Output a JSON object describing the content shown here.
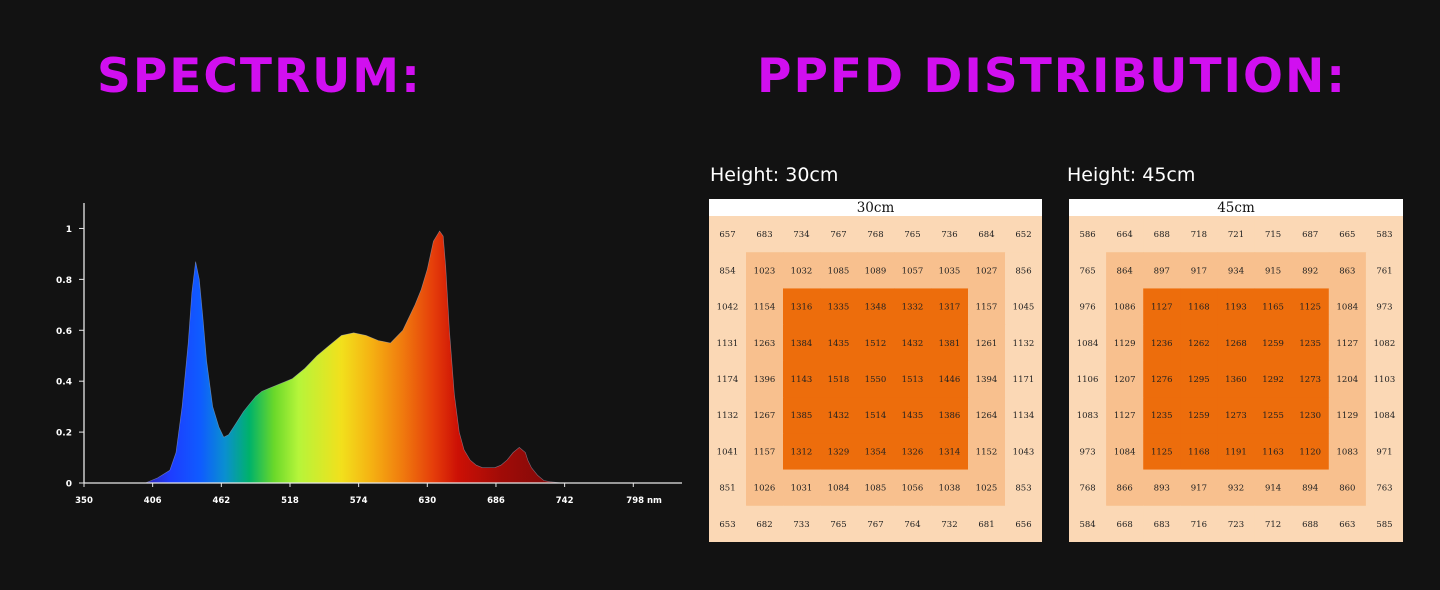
{
  "headings": {
    "spectrum": "SPECTRUM:",
    "ppfd": "PPFD DISTRIBUTION:"
  },
  "colors": {
    "background": "#121212",
    "heading": "#d10ff0",
    "axis": "#e8e8e8",
    "cell_outer": "#fbd8b5",
    "cell_middle": "#f8c08e",
    "cell_inner": "#ed6d0c",
    "grid_title_bg": "#ffffff",
    "grid_text": "#222222"
  },
  "chart_data": [
    {
      "type": "area",
      "title": "",
      "xlabel": "",
      "ylabel": "",
      "x_unit": "nm",
      "xlim": [
        350,
        810
      ],
      "ylim": [
        0,
        1.1
      ],
      "x_ticks": [
        350,
        406,
        462,
        518,
        574,
        630,
        686,
        742,
        798
      ],
      "x_tick_labels": [
        "350",
        "406",
        "462",
        "518",
        "574",
        "630",
        "686",
        "742",
        "798 nm"
      ],
      "y_ticks": [
        0,
        0.2,
        0.4,
        0.6,
        0.8,
        1
      ],
      "y_tick_labels": [
        "0",
        "0.2",
        "0.4",
        "0.6",
        "0.8",
        "1"
      ],
      "grid": false,
      "fill": "visible-spectrum gradient",
      "series": [
        {
          "x": [
            350,
            380,
            400,
            410,
            420,
            425,
            430,
            435,
            438,
            441,
            444,
            447,
            450,
            455,
            460,
            464,
            468,
            472,
            476,
            480,
            485,
            490,
            495,
            500,
            505,
            510,
            515,
            520,
            525,
            530,
            540,
            550,
            560,
            570,
            580,
            590,
            600,
            610,
            620,
            625,
            630,
            635,
            640,
            643,
            645,
            648,
            652,
            656,
            660,
            665,
            670,
            675,
            680,
            685,
            690,
            695,
            700,
            705,
            710,
            712,
            715,
            720,
            725,
            730,
            740,
            760,
            780,
            800
          ],
          "y": [
            0,
            0,
            0,
            0.02,
            0.05,
            0.12,
            0.3,
            0.55,
            0.75,
            0.87,
            0.8,
            0.65,
            0.48,
            0.3,
            0.22,
            0.18,
            0.19,
            0.22,
            0.25,
            0.28,
            0.31,
            0.34,
            0.36,
            0.37,
            0.38,
            0.39,
            0.4,
            0.41,
            0.43,
            0.45,
            0.5,
            0.54,
            0.58,
            0.59,
            0.58,
            0.56,
            0.55,
            0.6,
            0.7,
            0.76,
            0.84,
            0.95,
            0.99,
            0.97,
            0.85,
            0.6,
            0.35,
            0.2,
            0.13,
            0.09,
            0.07,
            0.06,
            0.06,
            0.06,
            0.07,
            0.09,
            0.12,
            0.14,
            0.12,
            0.09,
            0.06,
            0.03,
            0.01,
            0.005,
            0,
            0,
            0,
            0
          ]
        }
      ]
    },
    {
      "type": "heatmap",
      "panel_label": "Height: 30cm",
      "title": "30cm",
      "rows": [
        [
          657,
          683,
          734,
          767,
          768,
          765,
          736,
          684,
          652
        ],
        [
          854,
          1023,
          1032,
          1085,
          1089,
          1057,
          1035,
          1027,
          856
        ],
        [
          1042,
          1154,
          1316,
          1335,
          1348,
          1332,
          1317,
          1157,
          1045
        ],
        [
          1131,
          1263,
          1384,
          1435,
          1512,
          1432,
          1381,
          1261,
          1132
        ],
        [
          1174,
          1396,
          1143,
          1518,
          1550,
          1513,
          1446,
          1394,
          1171
        ],
        [
          1132,
          1267,
          1385,
          1432,
          1514,
          1435,
          1386,
          1264,
          1134
        ],
        [
          1041,
          1157,
          1312,
          1329,
          1354,
          1326,
          1314,
          1152,
          1043
        ],
        [
          851,
          1026,
          1031,
          1084,
          1085,
          1056,
          1038,
          1025,
          853
        ],
        [
          653,
          682,
          733,
          765,
          767,
          764,
          732,
          681,
          656
        ]
      ]
    },
    {
      "type": "heatmap",
      "panel_label": "Height: 45cm",
      "title": "45cm",
      "rows": [
        [
          586,
          664,
          688,
          718,
          721,
          715,
          687,
          665,
          583
        ],
        [
          765,
          864,
          897,
          917,
          934,
          915,
          892,
          863,
          761
        ],
        [
          976,
          1086,
          1127,
          1168,
          1193,
          1165,
          1125,
          1084,
          973
        ],
        [
          1084,
          1129,
          1236,
          1262,
          1268,
          1259,
          1235,
          1127,
          1082
        ],
        [
          1106,
          1207,
          1276,
          1295,
          1360,
          1292,
          1273,
          1204,
          1103
        ],
        [
          1083,
          1127,
          1235,
          1259,
          1273,
          1255,
          1230,
          1129,
          1084
        ],
        [
          973,
          1084,
          1125,
          1168,
          1191,
          1163,
          1120,
          1083,
          971
        ],
        [
          768,
          866,
          893,
          917,
          932,
          914,
          894,
          860,
          763
        ],
        [
          584,
          668,
          683,
          716,
          723,
          712,
          688,
          663,
          585
        ]
      ]
    }
  ]
}
